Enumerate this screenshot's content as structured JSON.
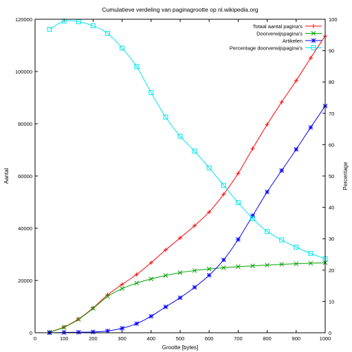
{
  "chart_data": {
    "type": "line",
    "title": "Cumulatieve verdeling van paginagrootte op nl.wikipedia.org",
    "xlabel": "Grootte [bytes]",
    "ylabel": "Aantal",
    "y2label": "Percentage",
    "xlim": [
      0,
      1000
    ],
    "ylim": [
      0,
      120000
    ],
    "y2lim": [
      0,
      100
    ],
    "xticks": [
      "0",
      "100",
      "200",
      "300",
      "400",
      "500",
      "600",
      "700",
      "800",
      "900",
      "1000"
    ],
    "yticks": [
      "0",
      "20000",
      "40000",
      "60000",
      "80000",
      "100000",
      "120000"
    ],
    "y2ticks": [
      "0",
      "10",
      "20",
      "30",
      "40",
      "50",
      "60",
      "70",
      "80",
      "90",
      "100"
    ],
    "grid": false,
    "legend_position": "top-right",
    "x": [
      50,
      100,
      150,
      200,
      250,
      300,
      350,
      400,
      450,
      500,
      550,
      600,
      650,
      700,
      750,
      800,
      850,
      900,
      950,
      1000
    ],
    "series": [
      {
        "name": "Totaal aantal pagina's",
        "color": "#ff0000",
        "marker": "plus",
        "axis": "left",
        "values": [
          200,
          2200,
          5300,
          9500,
          14500,
          18500,
          22300,
          26800,
          31700,
          36300,
          41000,
          46200,
          53000,
          61000,
          70500,
          79700,
          88300,
          96500,
          105200,
          113600
        ]
      },
      {
        "name": "Doorverwijspagina's",
        "color": "#00a000",
        "marker": "cross",
        "axis": "left",
        "values": [
          200,
          2100,
          5100,
          9300,
          13900,
          16900,
          19000,
          20600,
          21900,
          23000,
          23800,
          24400,
          24900,
          25300,
          25600,
          25900,
          26200,
          26400,
          26600,
          26800
        ]
      },
      {
        "name": "Artikelen",
        "color": "#0000ff",
        "marker": "star",
        "axis": "left",
        "values": [
          0,
          100,
          200,
          300,
          700,
          1700,
          3500,
          6300,
          9900,
          13400,
          17400,
          22000,
          27900,
          35700,
          44800,
          53900,
          62100,
          70200,
          78600,
          86800
        ]
      },
      {
        "name": "Percentage doorverwijspagina's",
        "color": "#00e5ee",
        "marker": "square",
        "axis": "right",
        "values": [
          96.8,
          99.4,
          99.2,
          97.9,
          95.5,
          90.8,
          84.9,
          76.6,
          68.8,
          62.7,
          57.9,
          52.6,
          47.0,
          41.5,
          36.4,
          32.3,
          29.6,
          27.3,
          25.3,
          23.6
        ]
      }
    ]
  }
}
